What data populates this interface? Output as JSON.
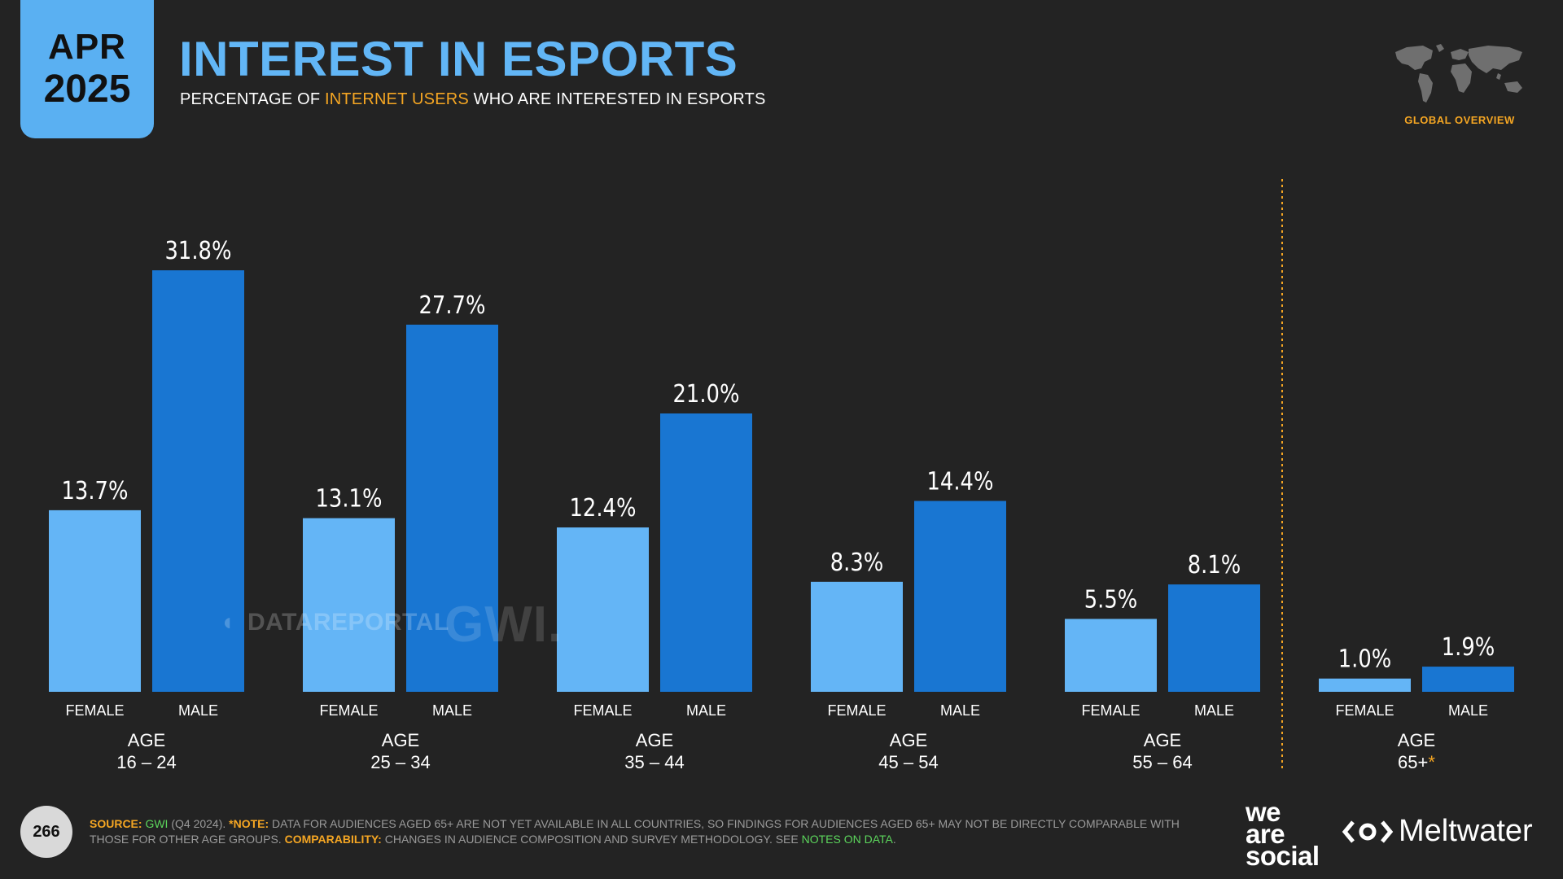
{
  "header": {
    "month": "APR",
    "year": "2025",
    "title": "INTEREST IN ESPORTS",
    "subtitle_pre": "PERCENTAGE OF ",
    "subtitle_highlight": "INTERNET USERS",
    "subtitle_post": " WHO ARE INTERESTED IN ESPORTS",
    "region_label": "GLOBAL OVERVIEW"
  },
  "watermarks": {
    "datareportal": "DATAREPORTAL",
    "gwi": "GWI."
  },
  "chart_data": {
    "type": "bar",
    "ylim": [
      0,
      35
    ],
    "categories": [
      {
        "age_label": "AGE",
        "age_range": "16 – 24",
        "asterisk": ""
      },
      {
        "age_label": "AGE",
        "age_range": "25 – 34",
        "asterisk": ""
      },
      {
        "age_label": "AGE",
        "age_range": "35 – 44",
        "asterisk": ""
      },
      {
        "age_label": "AGE",
        "age_range": "45 – 54",
        "asterisk": ""
      },
      {
        "age_label": "AGE",
        "age_range": "55 – 64",
        "asterisk": ""
      },
      {
        "age_label": "AGE",
        "age_range": "65+",
        "asterisk": "*"
      }
    ],
    "series": [
      {
        "name": "FEMALE",
        "color": "#64b5f6",
        "values": [
          13.7,
          13.1,
          12.4,
          8.3,
          5.5,
          1.0
        ]
      },
      {
        "name": "MALE",
        "color": "#1976d2",
        "values": [
          31.8,
          27.7,
          21.0,
          14.4,
          8.1,
          1.9
        ]
      }
    ],
    "value_suffix": "%",
    "separator_before_category": 5,
    "separator_color": "#f5a623"
  },
  "footer": {
    "page_number": "266",
    "source_label": "SOURCE:",
    "source_value": "GWI",
    "source_detail": " (Q4 2024). ",
    "note_label": "*NOTE:",
    "note_text": " DATA FOR AUDIENCES AGED 65+ ARE NOT YET AVAILABLE IN ALL COUNTRIES, SO FINDINGS FOR AUDIENCES AGED 65+ MAY NOT BE DIRECTLY COMPARABLE WITH THOSE FOR OTHER AGE GROUPS. ",
    "comparability_label": "COMPARABILITY:",
    "comparability_text": " CHANGES IN AUDIENCE COMPOSITION AND SURVEY METHODOLOGY. SEE ",
    "notes_link": "NOTES ON DATA",
    "end": ".",
    "brand1_line1": "we",
    "brand1_line2": "are",
    "brand1_line3": "social",
    "brand2": "Meltwater"
  },
  "colors": {
    "accent": "#f5a623",
    "title": "#62b6f6",
    "badge": "#5ab0f2",
    "background": "#232323"
  },
  "icons": {
    "map": "world-map-icon",
    "meltwater": "meltwater-logo-icon",
    "datareportal": "datareportal-logo-icon"
  }
}
